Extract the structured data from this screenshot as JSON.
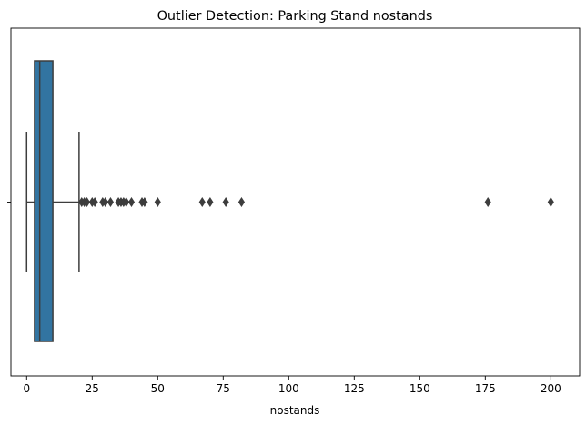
{
  "chart_data": {
    "type": "box",
    "orientation": "horizontal",
    "title": "Outlier Detection: Parking Stand nostands",
    "xlabel": "nostands",
    "ylabel": "",
    "xlim": [
      -6,
      211
    ],
    "xticks": [
      0,
      25,
      50,
      75,
      100,
      125,
      150,
      175,
      200
    ],
    "box": {
      "whisker_low": 0,
      "q1": 3,
      "median": 5,
      "q3": 10,
      "whisker_high": 20
    },
    "outliers": [
      21,
      22,
      23,
      25,
      26,
      29,
      30,
      32,
      35,
      36,
      37,
      38,
      40,
      44,
      45,
      50,
      67,
      70,
      76,
      82,
      176,
      200
    ],
    "colors": {
      "box_fill": "#3274a1",
      "line": "#3d3d3d",
      "outlier": "#3d3d3d"
    }
  }
}
